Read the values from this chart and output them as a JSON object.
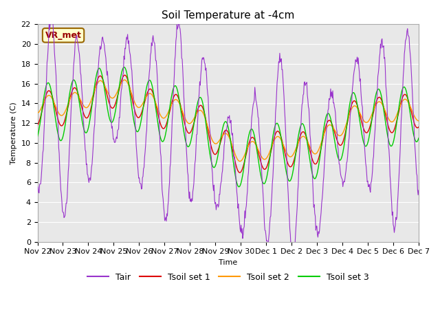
{
  "title": "Soil Temperature at -4cm",
  "xlabel": "Time",
  "ylabel": "Temperature (C)",
  "ylim": [
    0,
    22
  ],
  "yticks": [
    0,
    2,
    4,
    6,
    8,
    10,
    12,
    14,
    16,
    18,
    20,
    22
  ],
  "series_colors": {
    "Tair": "#9933cc",
    "Tsoil set 1": "#dd0000",
    "Tsoil set 2": "#ff9900",
    "Tsoil set 3": "#00cc00"
  },
  "legend_labels": [
    "Tair",
    "Tsoil set 1",
    "Tsoil set 2",
    "Tsoil set 3"
  ],
  "annotation_text": "VR_met",
  "annotation_color": "#990000",
  "annotation_bg": "#ffffcc",
  "annotation_border": "#996600",
  "x_tick_labels": [
    "Nov 22",
    "Nov 23",
    "Nov 24",
    "Nov 25",
    "Nov 26",
    "Nov 27",
    "Nov 28",
    "Nov 29",
    "Nov 30",
    "Dec 1",
    "Dec 2",
    "Dec 3",
    "Dec 4",
    "Dec 5",
    "Dec 6",
    "Dec 7"
  ],
  "title_fontsize": 11,
  "axis_fontsize": 8,
  "legend_fontsize": 9,
  "fig_facecolor": "#ffffff",
  "plot_facecolor": "#e8e8e8",
  "grid_color": "#ffffff"
}
